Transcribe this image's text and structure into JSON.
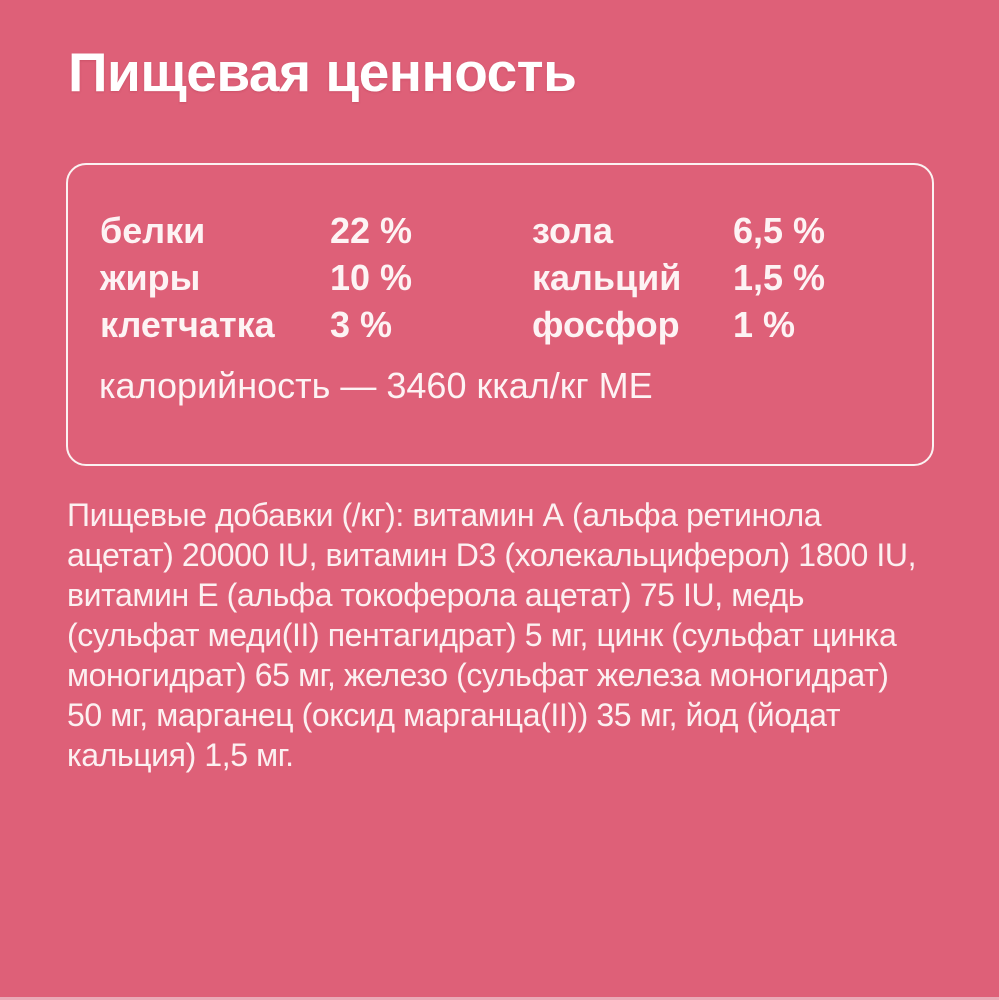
{
  "colors": {
    "background": "#de6078",
    "title_text": "#ffffff",
    "body_text": "#fdf3f4",
    "box_border": "#fbf2f2"
  },
  "title": "Пищевая ценность",
  "nutrition_box": {
    "rows": [
      {
        "label1": "белки",
        "value1": "22 %",
        "label2": "зола",
        "value2": "6,5 %"
      },
      {
        "label1": "жиры",
        "value1": "10 %",
        "label2": "кальций",
        "value2": "1,5 %"
      },
      {
        "label1": "клетчатка",
        "value1": "3 %",
        "label2": "фосфор",
        "value2": "1 %"
      }
    ],
    "calories_line": "калорийность — 3460 ккал/кг МЕ"
  },
  "additives": {
    "lines": [
      "Пищевые добавки (/кг): витамин А (альфа ретинола",
      "ацетат) 20000 IU, витамин D3 (холекальциферол) 1800 IU,",
      "витамин Е (альфа токоферола ацетат) 75 IU, медь",
      "(сульфат меди(II) пентагидрат) 5 мг, цинк (сульфат цинка",
      "моногидрат) 65 мг, железо (сульфат железа моногидрат)",
      "50 мг, марганец (оксид марганца(II)) 35 мг, йод (йодат",
      "кальция) 1,5 мг."
    ]
  }
}
